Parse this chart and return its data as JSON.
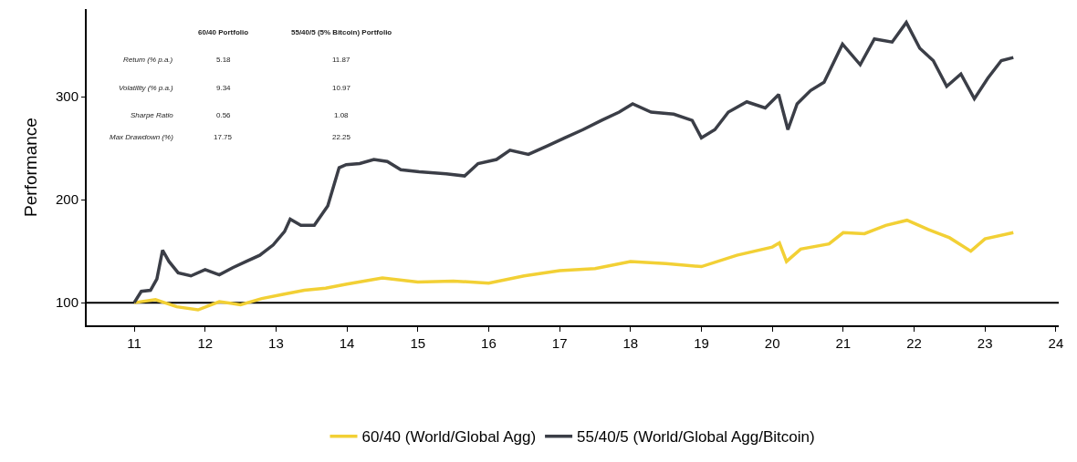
{
  "chart_data": {
    "type": "line",
    "ylabel": "Performance",
    "xlim": [
      10.33,
      24.04
    ],
    "xticks": [
      11,
      12,
      13,
      14,
      15,
      16,
      17,
      18,
      19,
      20,
      21,
      22,
      23,
      24
    ],
    "ylim": [
      78,
      385
    ],
    "yticks": [
      100,
      200,
      300
    ],
    "grid": false,
    "legend": "bottom",
    "marker": "none",
    "line_style": "solid",
    "ref_lines": [
      {
        "axis": "y",
        "value": 100,
        "color": "#000000"
      }
    ],
    "annotations": [
      "60/40 Portfolio",
      "55/40/5 (5% Bitcoin) Portfolio",
      "Return (% p.a.)",
      "5.18",
      "11.87",
      "Volatility (% p.a.)",
      "9.34",
      "10.97",
      "Sharpe Ratio",
      "0.56",
      "1.08",
      "Max Drawdown (%)",
      "17.75",
      "22.25"
    ],
    "series": [
      {
        "name": "60/40 (World/Global Agg)",
        "color": "#f2d035",
        "x": [
          11.0,
          11.3,
          11.6,
          11.9,
          12.2,
          12.5,
          12.8,
          13.1,
          13.4,
          13.7,
          14.0,
          14.5,
          15.0,
          15.5,
          16.0,
          16.5,
          17.0,
          17.5,
          18.0,
          18.5,
          19.0,
          19.5,
          20.0,
          20.1,
          20.2,
          20.4,
          20.8,
          21.0,
          21.3,
          21.6,
          21.9,
          22.2,
          22.5,
          22.8,
          23.0,
          23.4
        ],
        "values": [
          100,
          103,
          96,
          93,
          101,
          98,
          104,
          108,
          112,
          114,
          118,
          124,
          120,
          121,
          119,
          126,
          131,
          133,
          140,
          138,
          135,
          146,
          154,
          158,
          140,
          152,
          157,
          168,
          167,
          175,
          180,
          171,
          163,
          150,
          162,
          168
        ]
      },
      {
        "name": "55/40/5 (World/Global Agg/Bitcoin)",
        "color": "#3b3e47",
        "x": [
          11.0,
          11.1,
          11.23,
          11.32,
          11.4,
          11.49,
          11.62,
          11.8,
          12.0,
          12.2,
          12.39,
          12.58,
          12.77,
          12.96,
          13.12,
          13.2,
          13.35,
          13.54,
          13.73,
          13.89,
          13.99,
          14.18,
          14.38,
          14.57,
          14.76,
          15.02,
          15.4,
          15.66,
          15.85,
          16.11,
          16.3,
          16.56,
          16.82,
          17.07,
          17.33,
          17.59,
          17.84,
          18.03,
          18.29,
          18.61,
          18.87,
          19.0,
          19.19,
          19.38,
          19.64,
          19.9,
          20.09,
          20.22,
          20.35,
          20.54,
          20.73,
          20.99,
          21.24,
          21.44,
          21.69,
          21.89,
          22.08,
          22.27,
          22.46,
          22.66,
          22.85,
          23.04,
          23.23,
          23.4
        ],
        "values": [
          100,
          111,
          112,
          123,
          151,
          140,
          129,
          126,
          132,
          127,
          134,
          140,
          146,
          156,
          169,
          181,
          175,
          175,
          194,
          231,
          234,
          235,
          239,
          237,
          229,
          227,
          225,
          223,
          235,
          239,
          248,
          244,
          252,
          260,
          268,
          277,
          285,
          293,
          285,
          283,
          277,
          260,
          268,
          285,
          295,
          289,
          302,
          268,
          293,
          306,
          314,
          351,
          331,
          356,
          353,
          372,
          347,
          335,
          310,
          322,
          298,
          318,
          335,
          338
        ]
      }
    ]
  }
}
